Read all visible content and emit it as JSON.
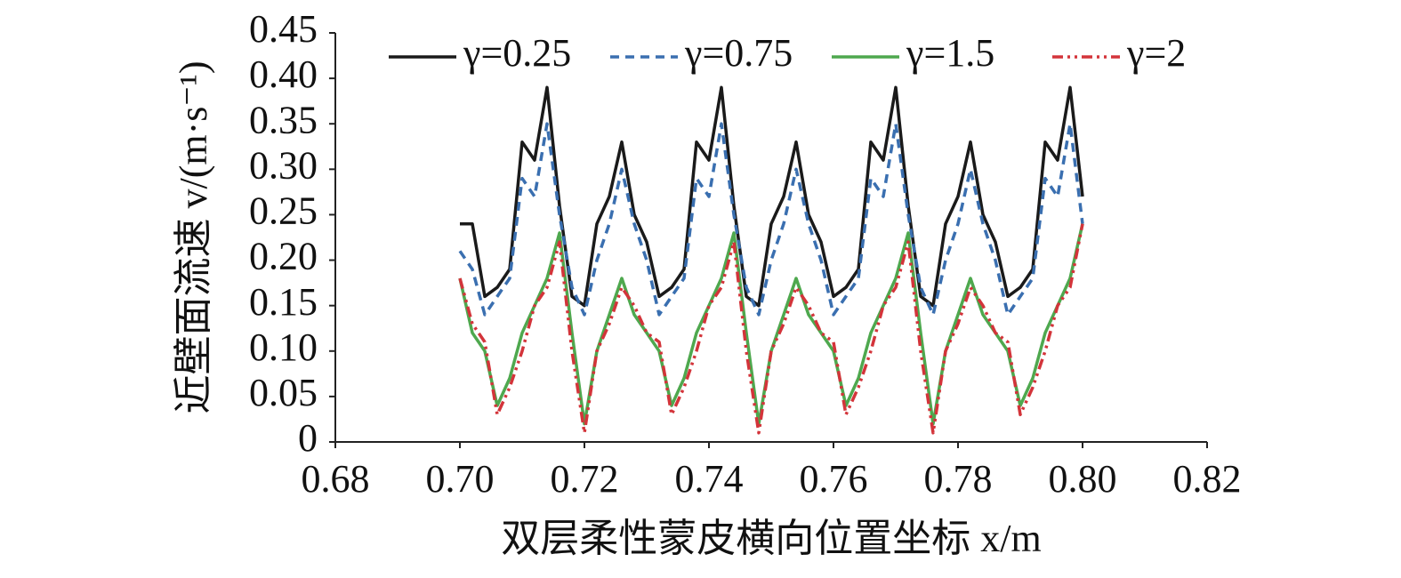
{
  "chart_data": {
    "type": "line",
    "xlabel": "双层柔性蒙皮横向位置坐标 x/m",
    "ylabel": "近壁面流速 v/(m·s⁻¹)",
    "x": [
      0.7,
      0.702,
      0.704,
      0.706,
      0.708,
      0.71,
      0.712,
      0.714,
      0.716,
      0.718,
      0.72,
      0.722,
      0.724,
      0.726,
      0.728,
      0.73,
      0.732,
      0.734,
      0.736,
      0.738,
      0.74,
      0.742,
      0.744,
      0.746,
      0.748,
      0.75,
      0.752,
      0.754,
      0.756,
      0.758,
      0.76,
      0.762,
      0.764,
      0.766,
      0.768,
      0.77,
      0.772,
      0.774,
      0.776,
      0.778,
      0.78,
      0.782,
      0.784,
      0.786,
      0.788,
      0.79,
      0.792,
      0.794,
      0.796,
      0.798,
      0.8
    ],
    "series": [
      {
        "name": "γ=0.25",
        "color": "#1a1a1a",
        "dash": "none",
        "values": [
          0.24,
          0.24,
          0.16,
          0.17,
          0.19,
          0.33,
          0.31,
          0.39,
          0.26,
          0.16,
          0.15,
          0.24,
          0.27,
          0.33,
          0.25,
          0.22,
          0.16,
          0.17,
          0.19,
          0.33,
          0.31,
          0.39,
          0.26,
          0.16,
          0.15,
          0.24,
          0.27,
          0.33,
          0.25,
          0.22,
          0.16,
          0.17,
          0.19,
          0.33,
          0.31,
          0.39,
          0.26,
          0.16,
          0.15,
          0.24,
          0.27,
          0.33,
          0.25,
          0.22,
          0.16,
          0.17,
          0.19,
          0.33,
          0.31,
          0.39,
          0.27
        ]
      },
      {
        "name": "γ=0.75",
        "color": "#3a6fb0",
        "dash": "10 7",
        "values": [
          0.21,
          0.19,
          0.14,
          0.16,
          0.18,
          0.29,
          0.27,
          0.35,
          0.25,
          0.17,
          0.14,
          0.2,
          0.24,
          0.3,
          0.24,
          0.2,
          0.14,
          0.16,
          0.18,
          0.29,
          0.27,
          0.35,
          0.25,
          0.17,
          0.14,
          0.2,
          0.24,
          0.3,
          0.24,
          0.2,
          0.14,
          0.16,
          0.18,
          0.29,
          0.27,
          0.35,
          0.25,
          0.17,
          0.14,
          0.2,
          0.24,
          0.3,
          0.24,
          0.2,
          0.14,
          0.16,
          0.18,
          0.29,
          0.27,
          0.35,
          0.24
        ]
      },
      {
        "name": "γ=1.5",
        "color": "#4ea84e",
        "dash": "none",
        "values": [
          0.18,
          0.12,
          0.1,
          0.04,
          0.07,
          0.12,
          0.15,
          0.18,
          0.23,
          0.12,
          0.02,
          0.1,
          0.14,
          0.18,
          0.14,
          0.12,
          0.1,
          0.04,
          0.07,
          0.12,
          0.15,
          0.18,
          0.23,
          0.12,
          0.02,
          0.1,
          0.14,
          0.18,
          0.14,
          0.12,
          0.1,
          0.04,
          0.07,
          0.12,
          0.15,
          0.18,
          0.23,
          0.12,
          0.02,
          0.1,
          0.14,
          0.18,
          0.14,
          0.12,
          0.1,
          0.04,
          0.07,
          0.12,
          0.15,
          0.18,
          0.24
        ]
      },
      {
        "name": "γ=2",
        "color": "#d3343a",
        "dash": "12 5 3 5 3 5",
        "values": [
          0.18,
          0.13,
          0.11,
          0.03,
          0.06,
          0.1,
          0.15,
          0.17,
          0.22,
          0.1,
          0.01,
          0.1,
          0.13,
          0.17,
          0.15,
          0.12,
          0.11,
          0.03,
          0.06,
          0.1,
          0.15,
          0.17,
          0.22,
          0.1,
          0.01,
          0.1,
          0.13,
          0.17,
          0.15,
          0.12,
          0.11,
          0.03,
          0.06,
          0.1,
          0.15,
          0.17,
          0.22,
          0.1,
          0.01,
          0.1,
          0.13,
          0.17,
          0.15,
          0.12,
          0.11,
          0.03,
          0.06,
          0.1,
          0.15,
          0.17,
          0.24
        ]
      }
    ],
    "xlim": [
      0.68,
      0.82
    ],
    "xticks": [
      0.68,
      {
        "value": 0.7,
        "label": "0.70"
      },
      0.72,
      0.74,
      0.76,
      0.78,
      {
        "value": 0.8,
        "label": "0.80"
      },
      0.82
    ],
    "ylim": [
      0,
      0.45
    ],
    "yticks": [
      0,
      0.05,
      {
        "value": 0.1,
        "label": "0.10"
      },
      0.15,
      {
        "value": 0.2,
        "label": "0.20"
      },
      0.25,
      {
        "value": 0.3,
        "label": "0.30"
      },
      0.35,
      {
        "value": 0.4,
        "label": "0.40"
      },
      0.45
    ],
    "grid": false,
    "legend": "top"
  }
}
